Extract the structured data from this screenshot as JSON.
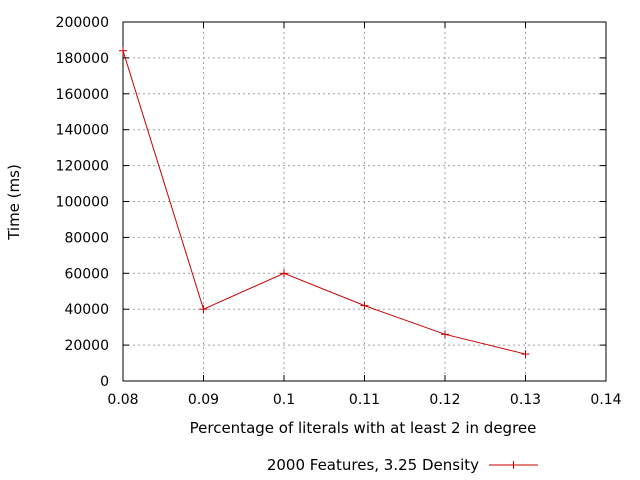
{
  "chart_data": {
    "type": "line",
    "xlabel": "Percentage of literals with at least 2 in degree",
    "ylabel": "Time (ms)",
    "xlim": [
      0.08,
      0.14
    ],
    "ylim": [
      0,
      200000
    ],
    "xticks": [
      0.08,
      0.09,
      0.1,
      0.11,
      0.12,
      0.13,
      0.14
    ],
    "xtick_labels": [
      "0.08",
      "0.09",
      "0.1",
      "0.11",
      "0.12",
      "0.13",
      "0.14"
    ],
    "yticks": [
      0,
      20000,
      40000,
      60000,
      80000,
      100000,
      120000,
      140000,
      160000,
      180000,
      200000
    ],
    "ytick_labels": [
      "0",
      "20000",
      "40000",
      "60000",
      "80000",
      "100000",
      "120000",
      "140000",
      "160000",
      "180000",
      "200000"
    ],
    "grid": true,
    "legend_position": "bottom-center",
    "series": [
      {
        "name": "2000 Features, 3.25 Density",
        "color": "#cc0000",
        "marker": "plus",
        "x": [
          0.08,
          0.09,
          0.1,
          0.11,
          0.12,
          0.13
        ],
        "y": [
          184000,
          40000,
          60000,
          42000,
          26000,
          15000
        ]
      }
    ]
  }
}
